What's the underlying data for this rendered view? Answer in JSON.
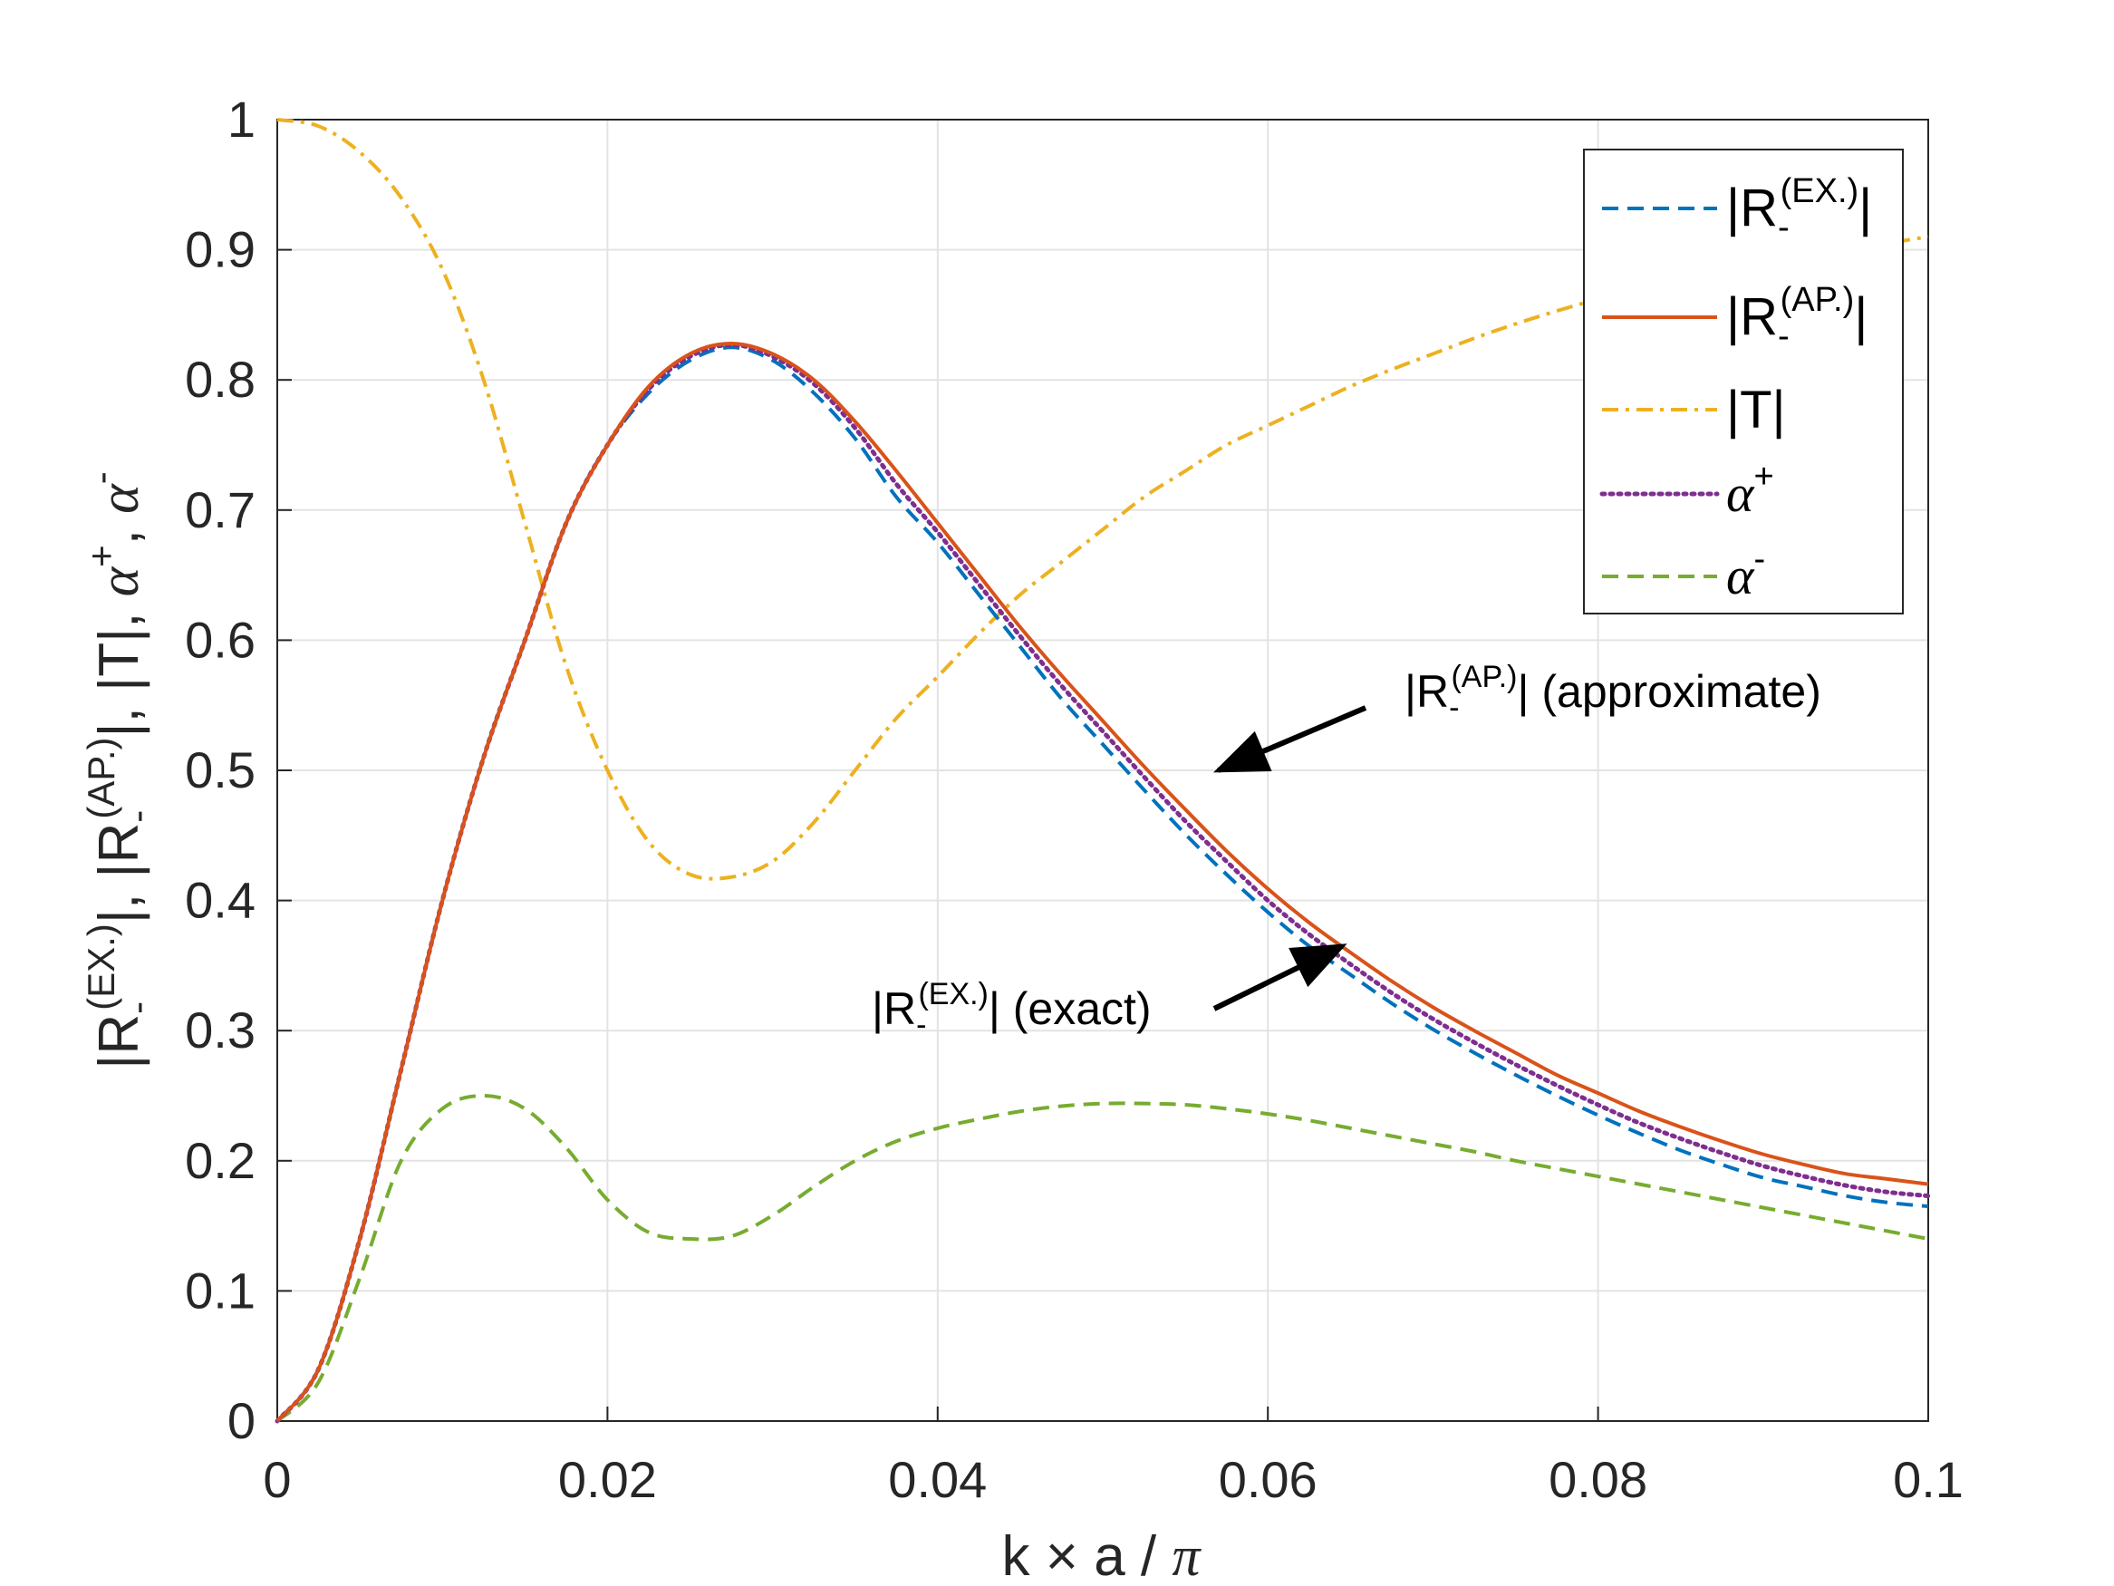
{
  "chart_data": {
    "type": "line",
    "xlabel": {
      "pre": "k ",
      "times": "×",
      "mid": " a / ",
      "pi": "π"
    },
    "ylabel": {
      "bar1": "|R",
      "sub1": "-",
      "sup1": "(EX.)",
      "bar2": "|, |R",
      "sub2": "-",
      "sup2": "(AP.)",
      "t": "|, |T|, ",
      "a1": "α",
      "plus": "+",
      "comma": ", ",
      "a2": "α",
      "minus": "-"
    },
    "xlim": [
      0,
      0.1
    ],
    "ylim": [
      0,
      1
    ],
    "xticks": [
      "0",
      "0.02",
      "0.04",
      "0.06",
      "0.08",
      "0.1"
    ],
    "yticks": [
      "0",
      "0.1",
      "0.2",
      "0.3",
      "0.4",
      "0.5",
      "0.6",
      "0.7",
      "0.8",
      "0.9",
      "1"
    ],
    "grid": true,
    "legend_position": "top-right",
    "x": [
      0,
      0.0025,
      0.005,
      0.0075,
      0.01,
      0.0125,
      0.015,
      0.0175,
      0.02,
      0.0225,
      0.025,
      0.0275,
      0.03,
      0.0325,
      0.035,
      0.0375,
      0.04,
      0.0425,
      0.045,
      0.0475,
      0.05,
      0.0525,
      0.055,
      0.0575,
      0.06,
      0.0625,
      0.065,
      0.0675,
      0.07,
      0.0725,
      0.075,
      0.0775,
      0.08,
      0.0825,
      0.085,
      0.0875,
      0.09,
      0.0925,
      0.095,
      0.0975,
      0.1
    ],
    "series": [
      {
        "name": {
          "bar": "|R",
          "sub": "-",
          "sup": "(EX.)",
          "end": "|"
        },
        "color": "#0072BD",
        "dash": "dashed",
        "values": [
          0,
          0.04,
          0.14,
          0.27,
          0.4,
          0.51,
          0.6,
          0.69,
          0.75,
          0.79,
          0.815,
          0.825,
          0.815,
          0.79,
          0.755,
          0.71,
          0.675,
          0.635,
          0.595,
          0.555,
          0.52,
          0.485,
          0.451,
          0.42,
          0.391,
          0.365,
          0.343,
          0.321,
          0.301,
          0.283,
          0.266,
          0.25,
          0.235,
          0.221,
          0.208,
          0.197,
          0.187,
          0.18,
          0.173,
          0.168,
          0.165
        ]
      },
      {
        "name": {
          "bar": "|R",
          "sub": "-",
          "sup": "(AP.)",
          "end": "|"
        },
        "color": "#D95319",
        "dash": "solid",
        "values": [
          0,
          0.04,
          0.14,
          0.27,
          0.4,
          0.51,
          0.6,
          0.69,
          0.75,
          0.795,
          0.82,
          0.828,
          0.82,
          0.8,
          0.768,
          0.73,
          0.69,
          0.65,
          0.61,
          0.573,
          0.538,
          0.503,
          0.47,
          0.438,
          0.409,
          0.383,
          0.36,
          0.338,
          0.318,
          0.3,
          0.283,
          0.266,
          0.252,
          0.238,
          0.226,
          0.215,
          0.205,
          0.197,
          0.19,
          0.186,
          0.182
        ]
      },
      {
        "name": {
          "bar": "|T|"
        },
        "color": "#EDB120",
        "dash": "dashdot",
        "values": [
          1,
          0.995,
          0.975,
          0.94,
          0.885,
          0.8,
          0.69,
          0.58,
          0.5,
          0.445,
          0.42,
          0.418,
          0.43,
          0.46,
          0.5,
          0.54,
          0.572,
          0.605,
          0.635,
          0.66,
          0.685,
          0.71,
          0.73,
          0.75,
          0.765,
          0.78,
          0.795,
          0.808,
          0.82,
          0.832,
          0.843,
          0.853,
          0.862,
          0.87,
          0.877,
          0.884,
          0.89,
          0.895,
          0.9,
          0.905,
          0.91
        ]
      },
      {
        "name": {
          "sym": "α",
          "sup": "+"
        },
        "color": "#7E2F8E",
        "dash": "dotted",
        "values": [
          0,
          0.04,
          0.14,
          0.27,
          0.4,
          0.51,
          0.6,
          0.69,
          0.75,
          0.793,
          0.818,
          0.827,
          0.818,
          0.797,
          0.763,
          0.72,
          0.683,
          0.643,
          0.603,
          0.565,
          0.53,
          0.495,
          0.461,
          0.43,
          0.4,
          0.374,
          0.351,
          0.329,
          0.309,
          0.291,
          0.274,
          0.258,
          0.243,
          0.229,
          0.217,
          0.206,
          0.196,
          0.188,
          0.181,
          0.176,
          0.173
        ]
      },
      {
        "name": {
          "sym": "α",
          "sup": "-"
        },
        "color": "#77AC30",
        "dash": "dashed",
        "values": [
          0,
          0.03,
          0.11,
          0.2,
          0.24,
          0.25,
          0.24,
          0.21,
          0.17,
          0.145,
          0.14,
          0.142,
          0.158,
          0.18,
          0.2,
          0.215,
          0.225,
          0.232,
          0.238,
          0.242,
          0.244,
          0.244,
          0.243,
          0.24,
          0.236,
          0.231,
          0.225,
          0.219,
          0.213,
          0.207,
          0.2,
          0.194,
          0.188,
          0.182,
          0.176,
          0.17,
          0.164,
          0.158,
          0.152,
          0.146,
          0.14
        ]
      }
    ],
    "annotations": [
      {
        "bar": "|R",
        "sub": "-",
        "sup": "(AP.)",
        "end": "| (approximate)",
        "arrow_to": [
          0.057,
          0.5
        ]
      },
      {
        "bar": "|R",
        "sub": "-",
        "sup": "(EX.)",
        "end": "| (exact)",
        "arrow_to": [
          0.0645,
          0.365
        ]
      }
    ]
  }
}
